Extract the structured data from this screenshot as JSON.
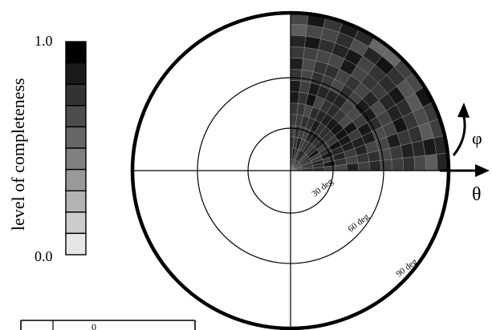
{
  "colorbar": {
    "title": "level of completeness",
    "max_label": "1.0",
    "min_label": "0.0",
    "levels": 10
  },
  "axes": {
    "theta_label": "θ",
    "phi_label": "φ"
  },
  "rings": [
    {
      "value": 30,
      "label": "30 deg"
    },
    {
      "value": 60,
      "label": "60 deg"
    },
    {
      "value": 90,
      "label": "90 deg"
    }
  ],
  "coverage": {
    "quadrant": "upper-right",
    "theta_range_deg": [
      0,
      90
    ],
    "phi_range_deg": [
      0,
      90
    ],
    "typical_level": 0.8
  },
  "legend_box": {
    "cell_text": "0"
  },
  "colors": {
    "line": "#000000",
    "background": "#ffffff",
    "colorbar_light": "#e6e6e6",
    "colorbar_dark": "#000000"
  }
}
